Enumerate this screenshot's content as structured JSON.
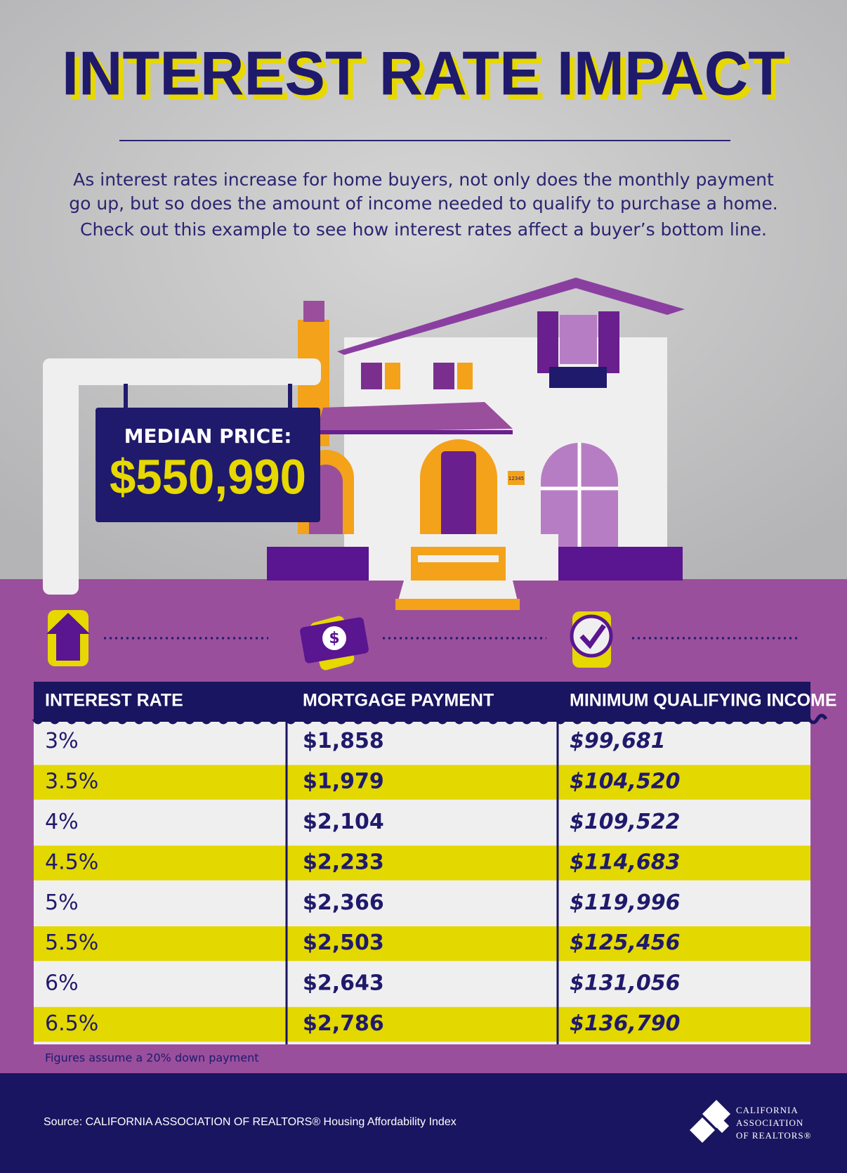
{
  "header": {
    "title": "INTEREST RATE IMPACT",
    "intro": [
      "As interest rates increase for home buyers, not only does the monthly payment",
      "go up, but so does the amount of income needed to qualify to purchase a home.",
      "Check out this example to see how interest rates affect a buyer’s bottom line."
    ]
  },
  "sign": {
    "label": "MEDIAN PRICE:",
    "price": "$550,990"
  },
  "house": {
    "number": "12345"
  },
  "table": {
    "headers": [
      "INTEREST RATE",
      "MORTGAGE PAYMENT",
      "MINIMUM QUALIFYING INCOME"
    ],
    "rows": [
      [
        "3%",
        "$1,858",
        "$99,681"
      ],
      [
        "3.5%",
        "$1,979",
        "$104,520"
      ],
      [
        "4%",
        "$2,104",
        "$109,522"
      ],
      [
        "4.5%",
        "$2,233",
        "$114,683"
      ],
      [
        "5%",
        "$2,366",
        "$119,996"
      ],
      [
        "5.5%",
        "$2,503",
        "$125,456"
      ],
      [
        "6%",
        "$2,643",
        "$131,056"
      ],
      [
        "6.5%",
        "$2,786",
        "$136,790"
      ]
    ],
    "note": "Figures assume a 20% down payment"
  },
  "footer": {
    "source": "Source: CALIFORNIA ASSOCIATION OF REALTORS® Housing Affordability Index",
    "logo": [
      "CALIFORNIA",
      "ASSOCIATION",
      "OF REALTORS®"
    ]
  }
}
